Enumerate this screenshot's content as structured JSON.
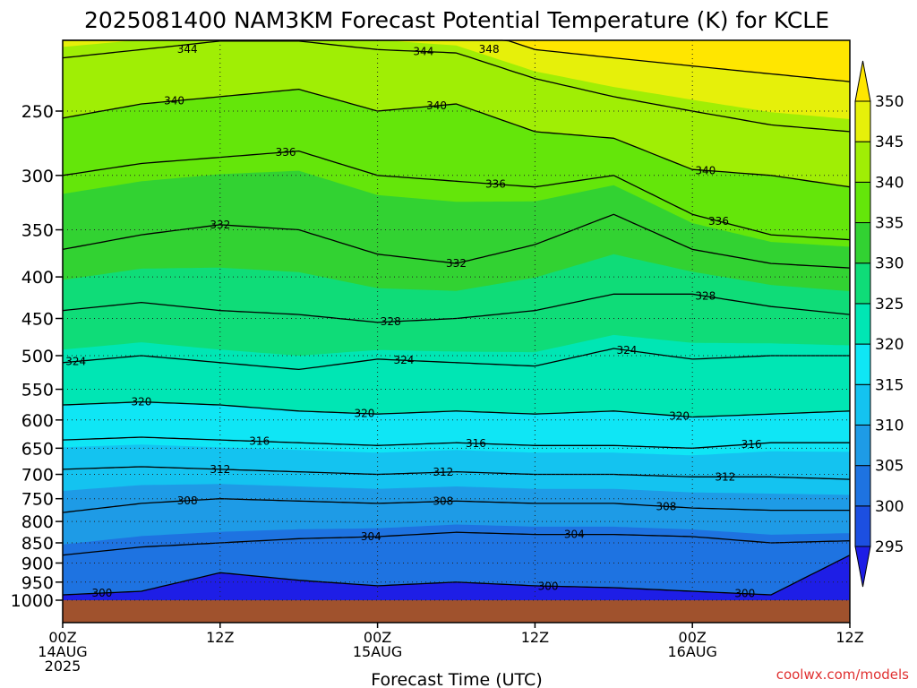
{
  "chart_data": {
    "type": "contour",
    "title": "2025081400 NAM3KM Forecast Potential Temperature (K) for KCLE",
    "xlabel": "Forecast Time (UTC)",
    "ylabel": "",
    "credit": "coolwx.com/models",
    "x_range_hours": [
      0,
      60
    ],
    "y_range_hpa": [
      200,
      1025
    ],
    "y_scale": "log",
    "grid": true,
    "x_ticks": [
      {
        "hour": 0,
        "lines": [
          "00Z",
          "14AUG",
          "2025"
        ]
      },
      {
        "hour": 12,
        "lines": [
          "12Z"
        ]
      },
      {
        "hour": 24,
        "lines": [
          "00Z",
          "15AUG"
        ]
      },
      {
        "hour": 36,
        "lines": [
          "12Z"
        ]
      },
      {
        "hour": 48,
        "lines": [
          "00Z",
          "16AUG"
        ]
      },
      {
        "hour": 60,
        "lines": [
          "12Z"
        ]
      }
    ],
    "y_ticks": [
      250,
      300,
      350,
      400,
      450,
      500,
      550,
      600,
      650,
      700,
      750,
      800,
      850,
      900,
      950,
      1000
    ],
    "colorbar": {
      "levels": [
        295,
        300,
        305,
        310,
        315,
        320,
        325,
        330,
        335,
        340,
        345,
        350
      ],
      "labels": [
        "295",
        "300",
        "305",
        "310",
        "315",
        "320",
        "325",
        "330",
        "335",
        "340",
        "345",
        "350"
      ],
      "colors": [
        "#1e1ee6",
        "#1c4fe1",
        "#1e73e1",
        "#1e9be6",
        "#14c3f0",
        "#0fe6f5",
        "#00e6b4",
        "#0fdc78",
        "#32d232",
        "#64e60a",
        "#a0ee05",
        "#e6f00a",
        "#ffe600",
        "#ffb400"
      ]
    },
    "ground_color": "#a0522d",
    "profile_x_hours": [
      0,
      6,
      12,
      18,
      24,
      30,
      36,
      42,
      48,
      54,
      60
    ],
    "contour_levels": [
      300,
      304,
      308,
      312,
      316,
      320,
      324,
      328,
      332,
      336,
      340,
      344,
      348
    ],
    "contour_labels": [
      {
        "text": "344",
        "hour": 9.5,
        "level": 344
      },
      {
        "text": "344",
        "hour": 27.5,
        "level": 344
      },
      {
        "text": "348",
        "hour": 32.5,
        "level": 348
      },
      {
        "text": "340",
        "hour": 8.5,
        "level": 340
      },
      {
        "text": "340",
        "hour": 28.5,
        "level": 340
      },
      {
        "text": "340",
        "hour": 49,
        "level": 340
      },
      {
        "text": "336",
        "hour": 17,
        "level": 336
      },
      {
        "text": "336",
        "hour": 33,
        "level": 336
      },
      {
        "text": "336",
        "hour": 50,
        "level": 336
      },
      {
        "text": "332",
        "hour": 12,
        "level": 332
      },
      {
        "text": "332",
        "hour": 30,
        "level": 332
      },
      {
        "text": "328",
        "hour": 25,
        "level": 328
      },
      {
        "text": "328",
        "hour": 49,
        "level": 328
      },
      {
        "text": "324",
        "hour": 1,
        "level": 324
      },
      {
        "text": "324",
        "hour": 26,
        "level": 324
      },
      {
        "text": "324",
        "hour": 43,
        "level": 324
      },
      {
        "text": "320",
        "hour": 6,
        "level": 320
      },
      {
        "text": "320",
        "hour": 23,
        "level": 320
      },
      {
        "text": "320",
        "hour": 47,
        "level": 320
      },
      {
        "text": "316",
        "hour": 15,
        "level": 316
      },
      {
        "text": "316",
        "hour": 31.5,
        "level": 316
      },
      {
        "text": "316",
        "hour": 52.5,
        "level": 316
      },
      {
        "text": "312",
        "hour": 12,
        "level": 312
      },
      {
        "text": "312",
        "hour": 29,
        "level": 312
      },
      {
        "text": "312",
        "hour": 50.5,
        "level": 312
      },
      {
        "text": "308",
        "hour": 9.5,
        "level": 308
      },
      {
        "text": "308",
        "hour": 29,
        "level": 308
      },
      {
        "text": "308",
        "hour": 46,
        "level": 308
      },
      {
        "text": "304",
        "hour": 23.5,
        "level": 304
      },
      {
        "text": "304",
        "hour": 39,
        "level": 304
      },
      {
        "text": "300",
        "hour": 3,
        "level": 300
      },
      {
        "text": "300",
        "hour": 37,
        "level": 300
      },
      {
        "text": "300",
        "hour": 52,
        "level": 300
      }
    ],
    "profiles": [
      {
        "hour": 0,
        "levels_K": [
          300,
          304,
          308,
          312,
          316,
          320,
          324,
          328,
          332,
          336,
          340,
          344,
          348
        ],
        "pressure_hPa": [
          985,
          880,
          780,
          690,
          635,
          575,
          510,
          440,
          370,
          300,
          255,
          215,
          190
        ]
      },
      {
        "hour": 6,
        "levels_K": [
          300,
          304,
          308,
          312,
          316,
          320,
          324,
          328,
          332,
          336,
          340,
          344,
          348
        ],
        "pressure_hPa": [
          975,
          860,
          760,
          685,
          630,
          570,
          500,
          430,
          355,
          290,
          245,
          210,
          188
        ]
      },
      {
        "hour": 12,
        "levels_K": [
          300,
          304,
          308,
          312,
          316,
          320,
          324,
          328,
          332,
          336,
          340,
          344,
          348
        ],
        "pressure_hPa": [
          925,
          850,
          750,
          690,
          635,
          575,
          510,
          440,
          345,
          285,
          240,
          205,
          185
        ]
      },
      {
        "hour": 18,
        "levels_K": [
          300,
          304,
          308,
          312,
          316,
          320,
          324,
          328,
          332,
          336,
          340,
          344,
          348
        ],
        "pressure_hPa": [
          945,
          840,
          755,
          695,
          640,
          585,
          520,
          445,
          350,
          280,
          235,
          205,
          185
        ]
      },
      {
        "hour": 24,
        "levels_K": [
          300,
          304,
          308,
          312,
          316,
          320,
          324,
          328,
          332,
          336,
          340,
          344,
          348
        ],
        "pressure_hPa": [
          960,
          835,
          760,
          700,
          645,
          590,
          505,
          455,
          375,
          300,
          250,
          210,
          188
        ]
      },
      {
        "hour": 30,
        "levels_K": [
          300,
          304,
          308,
          312,
          316,
          320,
          324,
          328,
          332,
          336,
          340,
          344,
          348
        ],
        "pressure_hPa": [
          950,
          825,
          755,
          695,
          640,
          585,
          510,
          450,
          385,
          305,
          245,
          212,
          195
        ]
      },
      {
        "hour": 36,
        "levels_K": [
          300,
          304,
          308,
          312,
          316,
          320,
          324,
          328,
          332,
          336,
          340,
          344,
          348
        ],
        "pressure_hPa": [
          960,
          830,
          760,
          700,
          645,
          590,
          515,
          440,
          365,
          310,
          265,
          228,
          210
        ]
      },
      {
        "hour": 42,
        "levels_K": [
          300,
          304,
          308,
          312,
          316,
          320,
          324,
          328,
          332,
          336,
          340,
          344,
          348
        ],
        "pressure_hPa": [
          965,
          830,
          760,
          700,
          645,
          585,
          490,
          420,
          335,
          300,
          270,
          240,
          215
        ]
      },
      {
        "hour": 48,
        "levels_K": [
          300,
          304,
          308,
          312,
          316,
          320,
          324,
          328,
          332,
          336,
          340,
          344,
          348
        ],
        "pressure_hPa": [
          975,
          835,
          770,
          705,
          650,
          595,
          505,
          420,
          370,
          335,
          295,
          250,
          220
        ]
      },
      {
        "hour": 54,
        "levels_K": [
          300,
          304,
          308,
          312,
          316,
          320,
          324,
          328,
          332,
          336,
          340,
          344,
          348
        ],
        "pressure_hPa": [
          985,
          850,
          775,
          705,
          640,
          590,
          500,
          435,
          385,
          355,
          300,
          260,
          225
        ]
      },
      {
        "hour": 60,
        "levels_K": [
          300,
          304,
          308,
          312,
          316,
          320,
          324,
          328,
          332,
          336,
          340,
          344,
          348
        ],
        "pressure_hPa": [
          880,
          845,
          775,
          710,
          640,
          585,
          500,
          445,
          390,
          360,
          310,
          265,
          230
        ]
      }
    ]
  }
}
